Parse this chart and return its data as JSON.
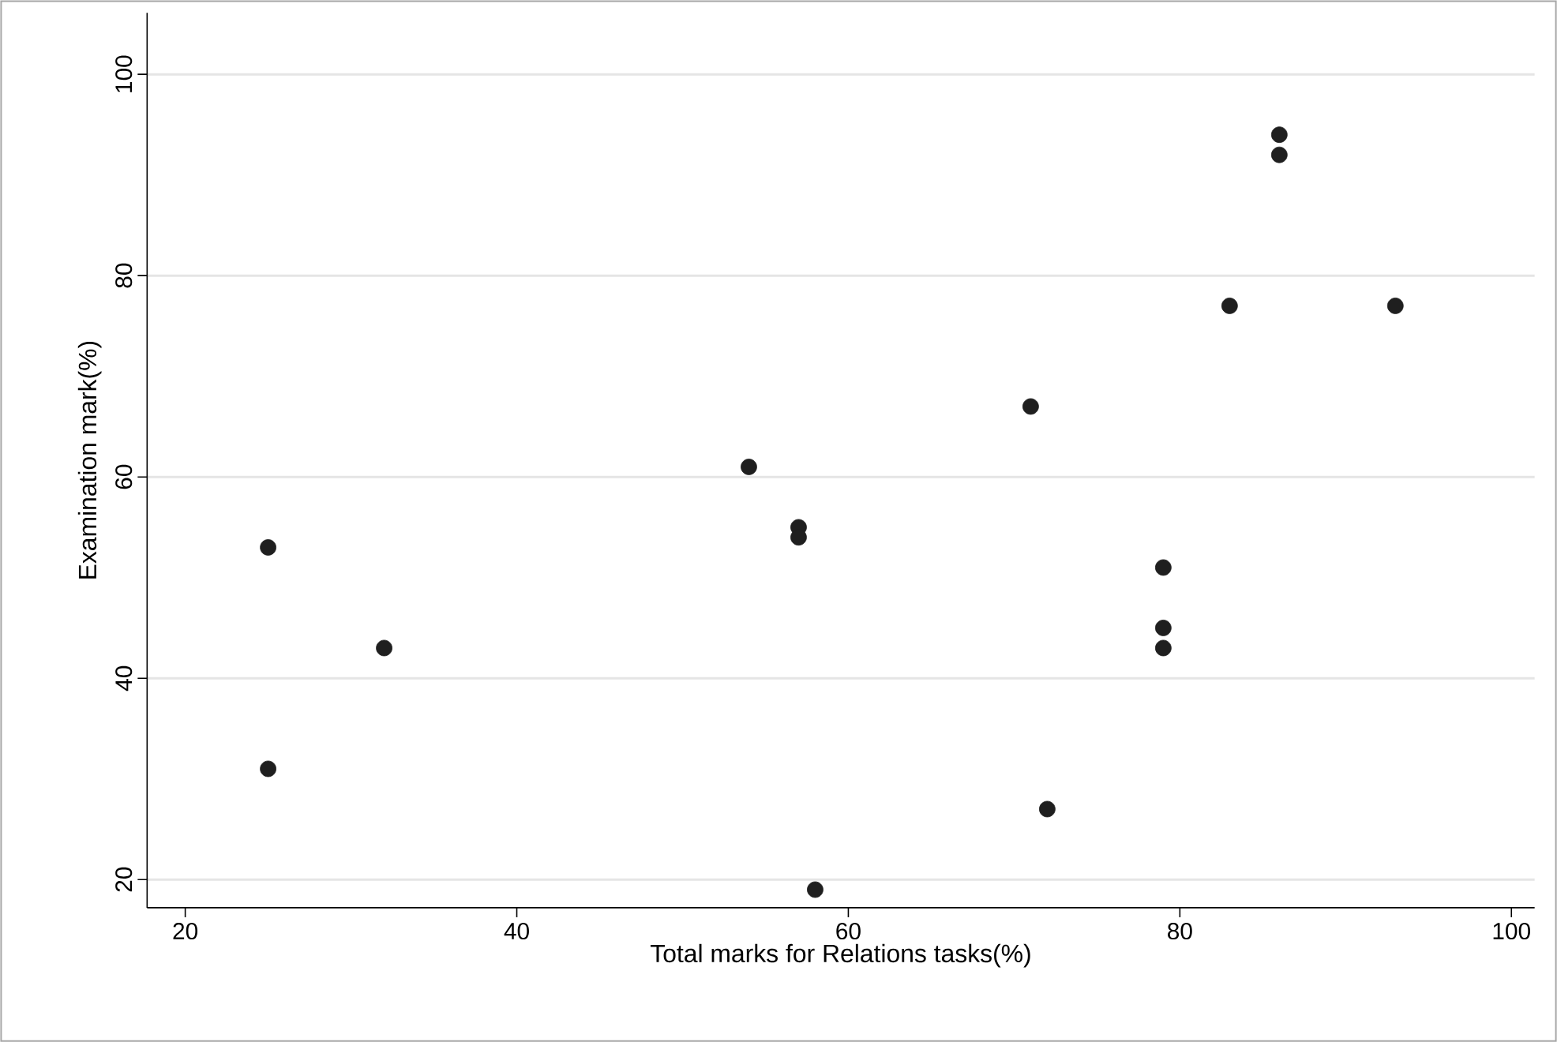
{
  "chart_data": {
    "type": "scatter",
    "xlabel": "Total marks for Relations tasks(%)",
    "ylabel": "Examination mark(%)",
    "x": [
      25,
      25,
      32,
      54,
      57,
      57,
      58,
      71,
      72,
      79,
      79,
      79,
      83,
      86,
      86,
      93
    ],
    "values": [
      53,
      31,
      43,
      61,
      55,
      54,
      19,
      67,
      27,
      51,
      45,
      43,
      77,
      94,
      92,
      77
    ],
    "color": "#1f1f1f",
    "xlim": [
      17.7,
      101.4
    ],
    "ylim": [
      17.2,
      106.1
    ],
    "xticks": [
      20,
      40,
      60,
      80,
      100
    ],
    "yticks": [
      20,
      40,
      60,
      80,
      100
    ],
    "grid": "y"
  }
}
